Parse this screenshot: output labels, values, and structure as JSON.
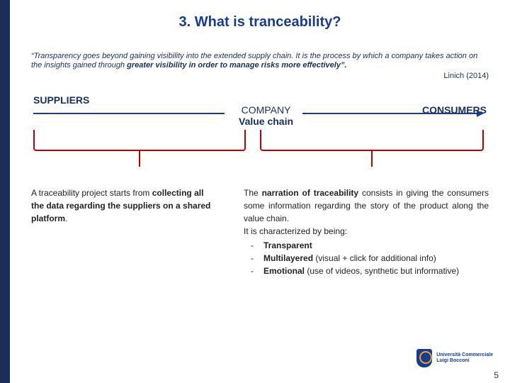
{
  "title": "3. What is tranceability?",
  "quote_plain": "“Transparency goes beyond gaining visibility into the extended supply chain. It is the process by which a company takes action on the insights gained through ",
  "quote_bold": "greater visibility in order to manage risks more effectively”.",
  "attribution": "Linich (2014)",
  "diagram": {
    "suppliers": "SUPPLIERS",
    "company": "COMPANY",
    "value_chain": "Value chain",
    "consumers": "CONSUMERS",
    "arrow_color": "#1a3c8c",
    "bracket_color": "#c00000"
  },
  "left_para_1": "A traceability project starts from ",
  "left_para_bold": "collecting all the data regarding the suppliers on a shared platform",
  "left_para_2": ".",
  "right_intro_1": "The ",
  "right_intro_bold": "narration of traceability",
  "right_intro_2": " consists in giving the consumers some information regarding the story of the product along the value chain.",
  "right_char_by": "It is characterized by being:",
  "bullets": [
    {
      "bold": "Transparent",
      "rest": ""
    },
    {
      "bold": "Multilayered",
      "rest": " (visual + click for additional info)"
    },
    {
      "bold": "Emotional",
      "rest": " (use of videos, synthetic but informative)"
    }
  ],
  "logo": {
    "line1": "Università Commerciale",
    "line2": "Luigi Bocconi"
  },
  "page_number": "5"
}
